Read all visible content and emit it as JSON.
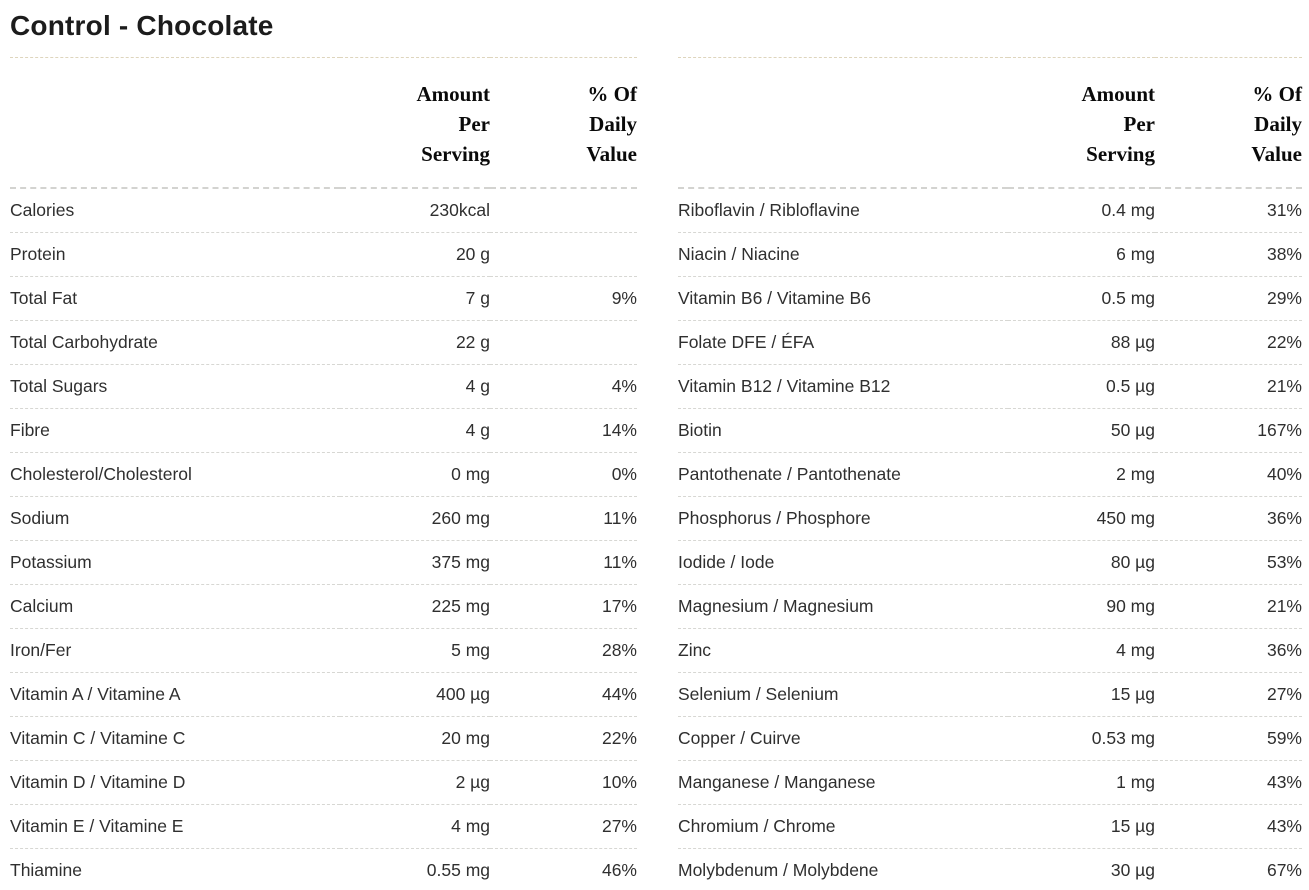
{
  "page_title": "Control - Chocolate",
  "header": {
    "amount": "Amount Per Serving",
    "daily_value": "% Of Daily Value"
  },
  "left_table": {
    "rows": [
      {
        "label": "Calories",
        "amount": "230kcal",
        "dv": ""
      },
      {
        "label": "Protein",
        "amount": "20 g",
        "dv": ""
      },
      {
        "label": "Total Fat",
        "amount": "7 g",
        "dv": "9%"
      },
      {
        "label": "Total Carbohydrate",
        "amount": "22 g",
        "dv": ""
      },
      {
        "label": "Total Sugars",
        "amount": "4 g",
        "dv": "4%"
      },
      {
        "label": "Fibre",
        "amount": "4 g",
        "dv": "14%"
      },
      {
        "label": "Cholesterol/Cholesterol",
        "amount": "0 mg",
        "dv": "0%"
      },
      {
        "label": "Sodium",
        "amount": "260 mg",
        "dv": "11%"
      },
      {
        "label": "Potassium",
        "amount": "375 mg",
        "dv": "11%"
      },
      {
        "label": "Calcium",
        "amount": "225 mg",
        "dv": "17%"
      },
      {
        "label": "Iron/Fer",
        "amount": "5 mg",
        "dv": "28%"
      },
      {
        "label": "Vitamin A / Vitamine A",
        "amount": "400 µg",
        "dv": "44%"
      },
      {
        "label": "Vitamin C / Vitamine C",
        "amount": "20 mg",
        "dv": "22%"
      },
      {
        "label": "Vitamin D / Vitamine D",
        "amount": "2 µg",
        "dv": "10%"
      },
      {
        "label": "Vitamin E / Vitamine E",
        "amount": "4 mg",
        "dv": "27%"
      },
      {
        "label": "Thiamine",
        "amount": "0.55 mg",
        "dv": "46%"
      }
    ]
  },
  "right_table": {
    "rows": [
      {
        "label": "Riboflavin / Ribloflavine",
        "amount": "0.4 mg",
        "dv": "31%"
      },
      {
        "label": "Niacin / Niacine",
        "amount": "6 mg",
        "dv": "38%"
      },
      {
        "label": "Vitamin B6 / Vitamine B6",
        "amount": "0.5 mg",
        "dv": "29%"
      },
      {
        "label": "Folate DFE / ÉFA",
        "amount": "88 µg",
        "dv": "22%"
      },
      {
        "label": "Vitamin B12 / Vitamine B12",
        "amount": "0.5 µg",
        "dv": "21%"
      },
      {
        "label": "Biotin",
        "amount": "50 µg",
        "dv": "167%"
      },
      {
        "label": "Pantothenate / Pantothenate",
        "amount": "2 mg",
        "dv": "40%"
      },
      {
        "label": "Phosphorus / Phosphore",
        "amount": "450 mg",
        "dv": "36%"
      },
      {
        "label": "Iodide / Iode",
        "amount": "80 µg",
        "dv": "53%"
      },
      {
        "label": "Magnesium / Magnesium",
        "amount": "90 mg",
        "dv": "21%"
      },
      {
        "label": "Zinc",
        "amount": "4 mg",
        "dv": "36%"
      },
      {
        "label": "Selenium / Selenium",
        "amount": "15 µg",
        "dv": "27%"
      },
      {
        "label": "Copper / Cuirve",
        "amount": "0.53 mg",
        "dv": "59%"
      },
      {
        "label": "Manganese / Manganese",
        "amount": "1 mg",
        "dv": "43%"
      },
      {
        "label": "Chromium / Chrome",
        "amount": "15 µg",
        "dv": "43%"
      },
      {
        "label": "Molybdenum / Molybdene",
        "amount": "30 µg",
        "dv": "67%"
      }
    ]
  }
}
